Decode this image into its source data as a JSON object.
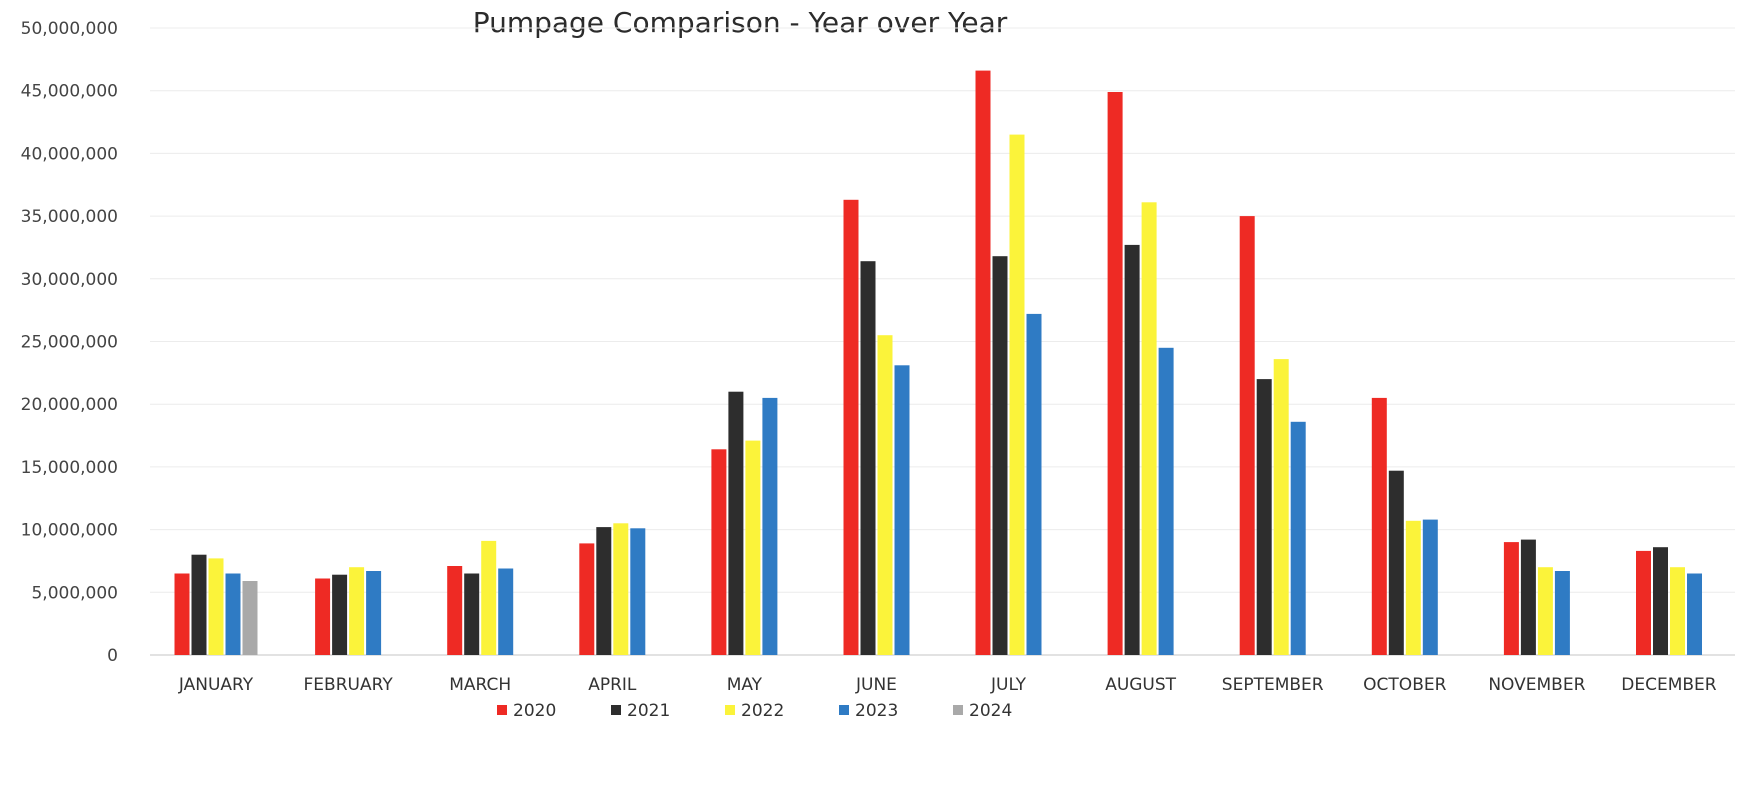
{
  "chart_data": {
    "type": "bar",
    "title": "Pumpage Comparison - Year over Year",
    "xlabel": "",
    "ylabel": "",
    "ylim": [
      0,
      50000000
    ],
    "y_ticks": [
      0,
      5000000,
      10000000,
      15000000,
      20000000,
      25000000,
      30000000,
      35000000,
      40000000,
      45000000,
      50000000
    ],
    "y_tick_labels": [
      "0",
      "5,000,000",
      "10,000,000",
      "15,000,000",
      "20,000,000",
      "25,000,000",
      "30,000,000",
      "35,000,000",
      "40,000,000",
      "45,000,000",
      "50,000,000"
    ],
    "grid": true,
    "legend_position": "bottom",
    "categories": [
      "JANUARY",
      "FEBRUARY",
      "MARCH",
      "APRIL",
      "MAY",
      "JUNE",
      "JULY",
      "AUGUST",
      "SEPTEMBER",
      "OCTOBER",
      "NOVEMBER",
      "DECEMBER"
    ],
    "series": [
      {
        "name": "2020",
        "color": "#ee2a24",
        "values": [
          6500000,
          6100000,
          7100000,
          8900000,
          16400000,
          36300000,
          46600000,
          44900000,
          35000000,
          20500000,
          9000000,
          8300000
        ]
      },
      {
        "name": "2021",
        "color": "#2d2d2d",
        "values": [
          8000000,
          6400000,
          6500000,
          10200000,
          21000000,
          31400000,
          31800000,
          32700000,
          22000000,
          14700000,
          9200000,
          8600000
        ]
      },
      {
        "name": "2022",
        "color": "#fbf33a",
        "values": [
          7700000,
          7000000,
          9100000,
          10500000,
          17100000,
          25500000,
          41500000,
          36100000,
          23600000,
          10700000,
          7000000,
          7000000
        ]
      },
      {
        "name": "2023",
        "color": "#2f7bc4",
        "values": [
          6500000,
          6700000,
          6900000,
          10100000,
          20500000,
          23100000,
          27200000,
          24500000,
          18600000,
          10800000,
          6700000,
          6500000
        ]
      },
      {
        "name": "2024",
        "color": "#a9a9a9",
        "values": [
          5900000,
          null,
          null,
          null,
          null,
          null,
          null,
          null,
          null,
          null,
          null,
          null
        ]
      }
    ]
  }
}
